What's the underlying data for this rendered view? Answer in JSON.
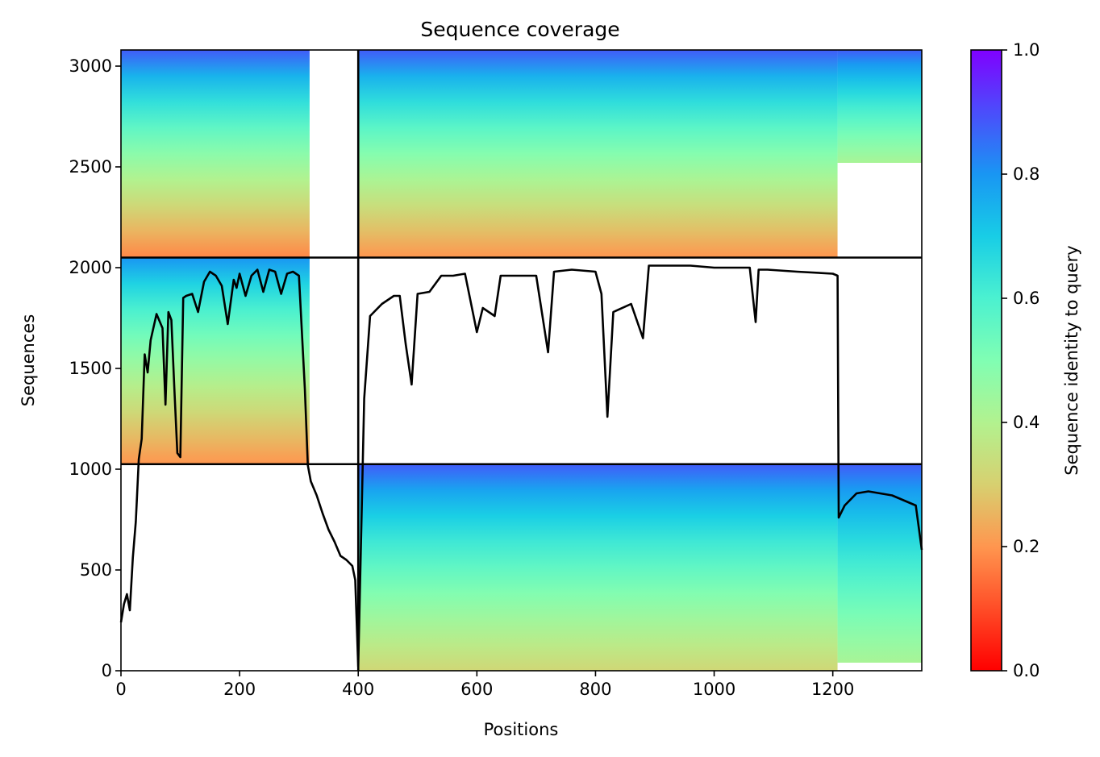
{
  "chart_data": {
    "type": "heatmap",
    "title": "Sequence coverage",
    "xlabel": "Positions",
    "ylabel": "Sequences",
    "xlim": [
      0,
      1350
    ],
    "ylim": [
      0,
      3080
    ],
    "x_ticks": [
      0,
      200,
      400,
      600,
      800,
      1000,
      1200
    ],
    "y_ticks": [
      0,
      500,
      1000,
      1500,
      2000,
      2500,
      3000
    ],
    "grid": false,
    "colorbar": {
      "label": "Sequence identity to query",
      "colormap": "rainbow_r",
      "range": [
        0,
        1
      ],
      "ticks": [
        0.0,
        0.2,
        0.4,
        0.6,
        0.8,
        1.0
      ],
      "tick_labels": [
        "0.0",
        "0.2",
        "0.4",
        "0.6",
        "0.8",
        "1.0"
      ]
    },
    "chain_boundaries": {
      "x": [
        400
      ],
      "y": [
        1025,
        2050
      ]
    },
    "blocks": [
      {
        "x_range": [
          0,
          400
        ],
        "y_range": [
          2050,
          3080
        ],
        "coverage_x_end": 318,
        "identity_top": 0.88,
        "identity_bottom": 0.18
      },
      {
        "x_range": [
          400,
          1208
        ],
        "y_range": [
          2050,
          3080
        ],
        "coverage_x_end": 1208,
        "identity_top": 0.88,
        "identity_bottom": 0.2
      },
      {
        "x_range": [
          1208,
          1350
        ],
        "y_range": [
          2520,
          3080
        ],
        "coverage_x_end": 1350,
        "identity_top": 0.88,
        "identity_bottom": 0.42
      },
      {
        "x_range": [
          0,
          400
        ],
        "y_range": [
          1025,
          2050
        ],
        "coverage_x_end": 318,
        "identity_top": 0.8,
        "identity_bottom": 0.2
      },
      {
        "x_range": [
          400,
          1208
        ],
        "y_range": [
          0,
          1025
        ],
        "coverage_x_end": 1208,
        "identity_top": 0.88,
        "identity_bottom": 0.32
      },
      {
        "x_range": [
          1208,
          1350
        ],
        "y_range": [
          40,
          1025
        ],
        "coverage_x_end": 1350,
        "identity_top": 0.88,
        "identity_bottom": 0.42
      }
    ],
    "coverage_line": {
      "name": "coverage",
      "color": "#000000",
      "x": [
        0,
        5,
        10,
        15,
        20,
        25,
        30,
        35,
        40,
        45,
        50,
        60,
        70,
        75,
        80,
        85,
        90,
        95,
        100,
        105,
        110,
        120,
        130,
        140,
        150,
        160,
        170,
        180,
        190,
        195,
        200,
        210,
        220,
        230,
        240,
        250,
        260,
        270,
        280,
        290,
        300,
        310,
        315,
        320,
        330,
        340,
        350,
        360,
        370,
        380,
        390,
        395,
        400,
        410,
        420,
        440,
        460,
        470,
        480,
        490,
        500,
        520,
        540,
        560,
        580,
        600,
        610,
        630,
        640,
        660,
        700,
        720,
        730,
        760,
        800,
        810,
        820,
        830,
        860,
        880,
        890,
        960,
        1000,
        1060,
        1070,
        1075,
        1090,
        1140,
        1200,
        1208,
        1210,
        1220,
        1240,
        1260,
        1300,
        1340,
        1350
      ],
      "y": [
        240,
        330,
        380,
        300,
        560,
        740,
        1050,
        1150,
        1570,
        1480,
        1640,
        1770,
        1700,
        1320,
        1780,
        1740,
        1400,
        1080,
        1060,
        1850,
        1860,
        1870,
        1780,
        1930,
        1980,
        1960,
        1910,
        1720,
        1940,
        1900,
        1970,
        1860,
        1960,
        1990,
        1880,
        1990,
        1980,
        1870,
        1970,
        1980,
        1960,
        1400,
        1020,
        940,
        870,
        780,
        700,
        640,
        570,
        550,
        520,
        450,
        20,
        1350,
        1760,
        1820,
        1860,
        1860,
        1620,
        1420,
        1870,
        1880,
        1960,
        1960,
        1970,
        1680,
        1800,
        1760,
        1960,
        1960,
        1960,
        1580,
        1980,
        1990,
        1980,
        1870,
        1260,
        1780,
        1820,
        1650,
        2010,
        2010,
        2000,
        2000,
        1730,
        1990,
        1990,
        1980,
        1970,
        1960,
        760,
        820,
        880,
        890,
        870,
        820,
        600
      ]
    }
  }
}
